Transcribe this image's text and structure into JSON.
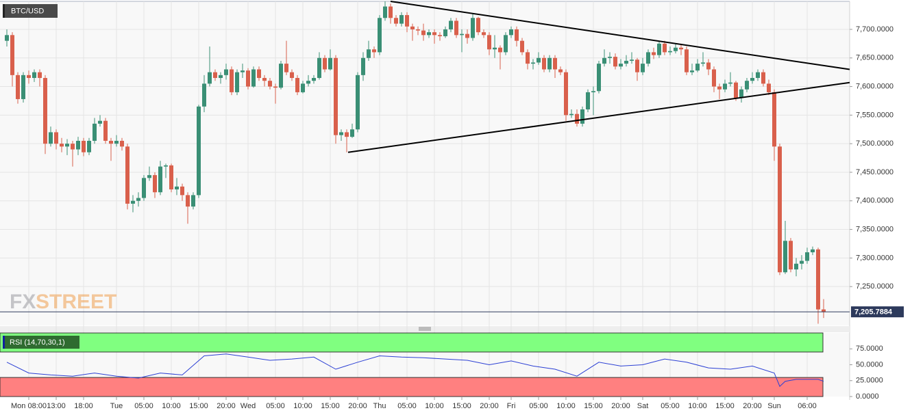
{
  "chart_data": [
    {
      "type": "candlestick",
      "title": "BTC/USD",
      "watermark": [
        "FX",
        "STREET"
      ],
      "up_color": "#3a8f75",
      "down_color": "#d9604c",
      "xlim": [
        2.75,
        157.75
      ],
      "ylim": [
        7182,
        7749
      ],
      "xticks": [
        {
          "value": 8,
          "label": "Mon 08:00"
        },
        {
          "value": 13,
          "label": "13:00"
        },
        {
          "value": 18,
          "label": "18:00"
        },
        {
          "value": 24,
          "label": "Tue"
        },
        {
          "value": 29,
          "label": "05:00"
        },
        {
          "value": 34,
          "label": "10:00"
        },
        {
          "value": 39,
          "label": "15:00"
        },
        {
          "value": 44,
          "label": "20:00"
        },
        {
          "value": 48,
          "label": "Wed"
        },
        {
          "value": 53,
          "label": "05:00"
        },
        {
          "value": 58,
          "label": "10:00"
        },
        {
          "value": 63,
          "label": "15:00"
        },
        {
          "value": 68,
          "label": "20:00"
        },
        {
          "value": 72,
          "label": "Thu"
        },
        {
          "value": 77,
          "label": "05:00"
        },
        {
          "value": 82,
          "label": "10:00"
        },
        {
          "value": 87,
          "label": "15:00"
        },
        {
          "value": 92,
          "label": "20:00"
        },
        {
          "value": 96,
          "label": "Fri"
        },
        {
          "value": 101,
          "label": "05:00"
        },
        {
          "value": 106,
          "label": "10:00"
        },
        {
          "value": 111,
          "label": "15:00"
        },
        {
          "value": 116,
          "label": "20:00"
        },
        {
          "value": 120,
          "label": "Sat"
        },
        {
          "value": 125,
          "label": "05:00"
        },
        {
          "value": 130,
          "label": "10:00"
        },
        {
          "value": 135,
          "label": "15:00"
        },
        {
          "value": 140,
          "label": "20:00"
        },
        {
          "value": 144,
          "label": "Sun"
        },
        {
          "value": 150,
          "label": "06:00"
        }
      ],
      "yticks": [
        {
          "value": 7250,
          "label": "7,250.0000"
        },
        {
          "value": 7300,
          "label": "7,300.0000"
        },
        {
          "value": 7350,
          "label": "7,350.0000"
        },
        {
          "value": 7400,
          "label": "7,400.0000"
        },
        {
          "value": 7450,
          "label": "7,450.0000"
        },
        {
          "value": 7500,
          "label": "7,500.0000"
        },
        {
          "value": 7550,
          "label": "7,550.0000"
        },
        {
          "value": 7600,
          "label": "7,600.0000"
        },
        {
          "value": 7650,
          "label": "7,650.0000"
        },
        {
          "value": 7700,
          "label": "7,700.0000"
        }
      ],
      "grid": true,
      "last_price": {
        "value": 7205.7884,
        "label": "7,205.7884"
      },
      "trendlines": [
        {
          "x": [
            74,
            157.75
          ],
          "y": [
            7749,
            7630
          ]
        },
        {
          "x": [
            66.25,
            157.75
          ],
          "y": [
            7485,
            7607
          ]
        }
      ],
      "x": [
        4,
        5,
        6,
        7,
        8,
        9,
        10,
        11,
        12,
        13,
        14,
        15,
        16,
        17,
        18,
        19,
        20,
        21,
        22,
        23,
        24,
        25,
        26,
        27,
        28,
        29,
        30,
        31,
        32,
        33,
        34,
        35,
        36,
        37,
        38,
        39,
        40,
        41,
        42,
        43,
        44,
        45,
        46,
        47,
        48,
        49,
        50,
        51,
        52,
        53,
        54,
        55,
        56,
        57,
        58,
        59,
        60,
        61,
        62,
        63,
        64,
        65,
        66,
        67,
        68,
        69,
        70,
        71,
        72,
        73,
        74,
        75,
        76,
        77,
        78,
        79,
        80,
        81,
        82,
        83,
        84,
        85,
        86,
        87,
        88,
        89,
        90,
        91,
        92,
        93,
        94,
        95,
        96,
        97,
        98,
        99,
        100,
        101,
        102,
        103,
        104,
        105,
        106,
        107,
        108,
        109,
        110,
        111,
        112,
        113,
        114,
        115,
        116,
        117,
        118,
        119,
        120,
        121,
        122,
        123,
        124,
        125,
        126,
        127,
        128,
        129,
        130,
        131,
        132,
        133,
        134,
        135,
        136,
        137,
        138,
        139,
        140,
        141,
        142,
        143,
        144,
        145,
        146,
        147,
        148,
        149,
        150,
        151,
        152,
        153
      ],
      "open": [
        7680,
        7690,
        7620,
        7578,
        7620,
        7615,
        7625,
        7615,
        7500,
        7520,
        7500,
        7495,
        7500,
        7490,
        7505,
        7485,
        7505,
        7535,
        7540,
        7505,
        7500,
        7505,
        7495,
        7395,
        7400,
        7405,
        7440,
        7445,
        7415,
        7460,
        7462,
        7420,
        7425,
        7410,
        7390,
        7410,
        7565,
        7605,
        7625,
        7615,
        7620,
        7630,
        7590,
        7625,
        7628,
        7600,
        7630,
        7615,
        7610,
        7600,
        7598,
        7640,
        7625,
        7615,
        7590,
        7605,
        7610,
        7615,
        7650,
        7630,
        7650,
        7515,
        7520,
        7512,
        7525,
        7620,
        7650,
        7665,
        7660,
        7720,
        7740,
        7720,
        7710,
        7725,
        7705,
        7700,
        7698,
        7690,
        7695,
        7690,
        7688,
        7700,
        7715,
        7690,
        7692,
        7685,
        7720,
        7695,
        7690,
        7665,
        7668,
        7660,
        7690,
        7700,
        7680,
        7660,
        7640,
        7642,
        7650,
        7630,
        7650,
        7630,
        7625,
        7550,
        7552,
        7535,
        7560,
        7590,
        7592,
        7640,
        7650,
        7652,
        7635,
        7640,
        7645,
        7647,
        7625,
        7640,
        7660,
        7655,
        7675,
        7660,
        7662,
        7668,
        7665,
        7625,
        7628,
        7640,
        7642,
        7630,
        7600,
        7595,
        7605,
        7607,
        7580,
        7595,
        7610,
        7615,
        7625,
        7605,
        7590,
        7495,
        7275,
        7330,
        7280,
        7290,
        7295,
        7310,
        7315,
        7210
      ],
      "high": [
        7700,
        7695,
        7625,
        7625,
        7628,
        7630,
        7630,
        7620,
        7530,
        7525,
        7510,
        7508,
        7505,
        7512,
        7510,
        7510,
        7545,
        7550,
        7545,
        7510,
        7515,
        7510,
        7500,
        7410,
        7415,
        7445,
        7460,
        7450,
        7470,
        7465,
        7465,
        7440,
        7430,
        7415,
        7415,
        7568,
        7620,
        7670,
        7630,
        7625,
        7640,
        7635,
        7630,
        7640,
        7632,
        7635,
        7635,
        7620,
        7615,
        7605,
        7645,
        7680,
        7630,
        7620,
        7610,
        7620,
        7620,
        7660,
        7655,
        7665,
        7655,
        7525,
        7525,
        7535,
        7625,
        7660,
        7680,
        7670,
        7725,
        7749,
        7745,
        7725,
        7730,
        7730,
        7710,
        7705,
        7710,
        7700,
        7700,
        7695,
        7705,
        7720,
        7720,
        7700,
        7700,
        7728,
        7722,
        7700,
        7695,
        7690,
        7672,
        7695,
        7705,
        7705,
        7685,
        7665,
        7648,
        7660,
        7655,
        7655,
        7655,
        7635,
        7630,
        7560,
        7560,
        7565,
        7595,
        7600,
        7645,
        7665,
        7660,
        7658,
        7648,
        7655,
        7660,
        7650,
        7650,
        7665,
        7668,
        7680,
        7680,
        7670,
        7675,
        7675,
        7670,
        7640,
        7648,
        7660,
        7648,
        7635,
        7605,
        7612,
        7625,
        7610,
        7600,
        7615,
        7625,
        7630,
        7630,
        7612,
        7595,
        7500,
        7365,
        7335,
        7300,
        7305,
        7318,
        7320,
        7318,
        7228
      ],
      "low": [
        7670,
        7600,
        7570,
        7572,
        7605,
        7608,
        7600,
        7482,
        7495,
        7490,
        7485,
        7480,
        7460,
        7480,
        7478,
        7480,
        7500,
        7530,
        7500,
        7470,
        7495,
        7488,
        7385,
        7380,
        7390,
        7400,
        7435,
        7405,
        7410,
        7440,
        7415,
        7410,
        7400,
        7360,
        7385,
        7405,
        7555,
        7600,
        7610,
        7605,
        7612,
        7585,
        7585,
        7615,
        7595,
        7598,
        7610,
        7600,
        7595,
        7570,
        7595,
        7620,
        7610,
        7585,
        7588,
        7600,
        7605,
        7612,
        7625,
        7628,
        7500,
        7505,
        7485,
        7510,
        7520,
        7610,
        7645,
        7650,
        7655,
        7715,
        7710,
        7705,
        7705,
        7695,
        7680,
        7690,
        7680,
        7685,
        7675,
        7680,
        7685,
        7695,
        7685,
        7660,
        7675,
        7680,
        7690,
        7685,
        7655,
        7650,
        7630,
        7655,
        7685,
        7670,
        7655,
        7630,
        7630,
        7638,
        7625,
        7625,
        7615,
        7620,
        7540,
        7545,
        7530,
        7530,
        7555,
        7550,
        7588,
        7635,
        7640,
        7630,
        7630,
        7635,
        7640,
        7610,
        7620,
        7635,
        7648,
        7650,
        7655,
        7655,
        7658,
        7655,
        7620,
        7620,
        7625,
        7635,
        7620,
        7590,
        7578,
        7590,
        7600,
        7575,
        7572,
        7590,
        7605,
        7610,
        7600,
        7585,
        7470,
        7270,
        7272,
        7275,
        7268,
        7280,
        7290,
        7305,
        7185,
        7195
      ],
      "close": [
        7690,
        7620,
        7578,
        7620,
        7615,
        7625,
        7615,
        7500,
        7520,
        7500,
        7495,
        7500,
        7490,
        7505,
        7485,
        7505,
        7535,
        7540,
        7505,
        7500,
        7505,
        7495,
        7395,
        7400,
        7405,
        7440,
        7445,
        7415,
        7460,
        7462,
        7420,
        7425,
        7410,
        7390,
        7410,
        7565,
        7605,
        7625,
        7615,
        7620,
        7630,
        7590,
        7625,
        7628,
        7600,
        7630,
        7615,
        7610,
        7600,
        7598,
        7640,
        7625,
        7615,
        7590,
        7605,
        7610,
        7615,
        7650,
        7630,
        7650,
        7515,
        7520,
        7512,
        7525,
        7620,
        7650,
        7665,
        7660,
        7720,
        7740,
        7720,
        7710,
        7725,
        7705,
        7700,
        7698,
        7690,
        7695,
        7690,
        7688,
        7700,
        7715,
        7690,
        7692,
        7685,
        7720,
        7695,
        7690,
        7665,
        7668,
        7660,
        7690,
        7700,
        7680,
        7660,
        7640,
        7642,
        7650,
        7630,
        7650,
        7630,
        7625,
        7550,
        7552,
        7535,
        7560,
        7590,
        7592,
        7640,
        7650,
        7652,
        7635,
        7640,
        7645,
        7647,
        7625,
        7640,
        7660,
        7655,
        7675,
        7660,
        7662,
        7668,
        7665,
        7625,
        7628,
        7640,
        7642,
        7630,
        7600,
        7595,
        7605,
        7607,
        7580,
        7595,
        7610,
        7615,
        7625,
        7605,
        7590,
        7495,
        7275,
        7330,
        7280,
        7290,
        7295,
        7310,
        7315,
        7210,
        7205.7884
      ]
    },
    {
      "type": "line",
      "xlim": [
        2.75,
        157.75
      ],
      "ylim": [
        0,
        100
      ],
      "yticks": [
        {
          "value": 0,
          "label": "0.0000"
        },
        {
          "value": 25,
          "label": "25.0000"
        },
        {
          "value": 50,
          "label": "50.0000"
        },
        {
          "value": 75,
          "label": "75.0000"
        }
      ],
      "bands": [
        {
          "range": [
            70,
            100
          ],
          "color": "#80ff80"
        },
        {
          "range": [
            0,
            30
          ],
          "color": "#ff8080"
        }
      ],
      "x": [
        4,
        8,
        12,
        16,
        20,
        24,
        28,
        32,
        36,
        40,
        44,
        48,
        52,
        56,
        60,
        64,
        68,
        72,
        76,
        80,
        84,
        88,
        92,
        96,
        100,
        104,
        108,
        112,
        116,
        120,
        124,
        128,
        132,
        136,
        140,
        144,
        145,
        146,
        148,
        152,
        153
      ],
      "series": [
        {
          "name": "RSI (14,70,30,1)",
          "color": "#2b3fd4",
          "values": [
            54,
            37,
            34,
            32,
            37,
            32,
            29,
            37,
            34,
            64,
            67,
            62,
            57,
            59,
            62,
            43,
            54,
            64,
            62,
            61,
            59,
            57,
            50,
            56,
            48,
            43,
            32,
            54,
            48,
            50,
            59,
            54,
            45,
            43,
            48,
            37,
            16,
            24,
            27,
            27,
            24
          ]
        }
      ]
    }
  ]
}
